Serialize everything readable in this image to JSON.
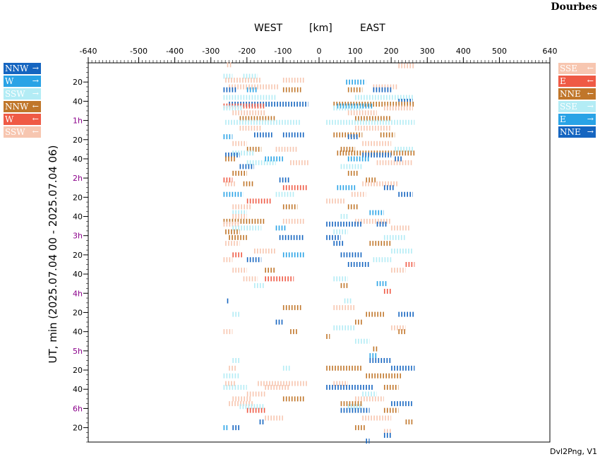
{
  "station": "Dourbes",
  "header": {
    "west": "WEST",
    "unit": "[km]",
    "east": "EAST"
  },
  "footer": "Dvl2Png, V1",
  "colors": {
    "NNW": "#1565c0",
    "W": "#29a3e6",
    "SSW": "#b3ecf5",
    "NNE": "#c0762a",
    "E": "#ef5a45",
    "SSE": "#f7c6b0"
  },
  "legend_left": [
    {
      "label": "NNW",
      "arrow": "→",
      "color": "#1565c0"
    },
    {
      "label": "W",
      "arrow": "→",
      "color": "#29a3e6"
    },
    {
      "label": "SSW",
      "arrow": "→",
      "color": "#b3ecf5"
    },
    {
      "label": "NNW",
      "arrow": "←",
      "color": "#c0762a"
    },
    {
      "label": "W",
      "arrow": "←",
      "color": "#ef5a45"
    },
    {
      "label": "SSW",
      "arrow": "←",
      "color": "#f7c6b0"
    }
  ],
  "legend_right": [
    {
      "label": "SSE",
      "arrow": "←",
      "color": "#f7c6b0"
    },
    {
      "label": "E",
      "arrow": "←",
      "color": "#ef5a45"
    },
    {
      "label": "NNE",
      "arrow": "←",
      "color": "#c0762a"
    },
    {
      "label": "SSE",
      "arrow": "→",
      "color": "#b3ecf5"
    },
    {
      "label": "E",
      "arrow": "→",
      "color": "#29a3e6"
    },
    {
      "label": "NNE",
      "arrow": "→",
      "color": "#1565c0"
    }
  ],
  "chart_data": {
    "type": "scatter",
    "title": "",
    "xlabel": "[km]",
    "ylabel": "UT, min (2025.07.04 00 - 2025.07.04 06)",
    "xlim": [
      -640,
      640
    ],
    "ylim_minutes": [
      0,
      395
    ],
    "x_ticks": [
      -640,
      -500,
      -400,
      -300,
      -200,
      -100,
      0,
      100,
      200,
      300,
      400,
      500,
      640
    ],
    "y_ticks": [
      {
        "min": 20,
        "label": "20",
        "hour": false
      },
      {
        "min": 40,
        "label": "40",
        "hour": false
      },
      {
        "min": 60,
        "label": "1h",
        "hour": true
      },
      {
        "min": 80,
        "label": "20",
        "hour": false
      },
      {
        "min": 100,
        "label": "40",
        "hour": false
      },
      {
        "min": 120,
        "label": "2h",
        "hour": true
      },
      {
        "min": 140,
        "label": "20",
        "hour": false
      },
      {
        "min": 160,
        "label": "40",
        "hour": false
      },
      {
        "min": 180,
        "label": "3h",
        "hour": true
      },
      {
        "min": 200,
        "label": "20",
        "hour": false
      },
      {
        "min": 220,
        "label": "40",
        "hour": false
      },
      {
        "min": 240,
        "label": "4h",
        "hour": true
      },
      {
        "min": 260,
        "label": "20",
        "hour": false
      },
      {
        "min": 280,
        "label": "40",
        "hour": false
      },
      {
        "min": 300,
        "label": "5h",
        "hour": true
      },
      {
        "min": 320,
        "label": "20",
        "hour": false
      },
      {
        "min": 340,
        "label": "40",
        "hour": false
      },
      {
        "min": 360,
        "label": "6h",
        "hour": true
      },
      {
        "min": 380,
        "label": "20",
        "hour": false
      }
    ],
    "segments": [
      {
        "t": 2,
        "x1": -255,
        "x2": -240,
        "c": "SSE"
      },
      {
        "t": 3,
        "x1": 220,
        "x2": 265,
        "c": "SSE"
      },
      {
        "t": 14,
        "x1": -265,
        "x2": -240,
        "c": "SSW"
      },
      {
        "t": 14,
        "x1": -210,
        "x2": -170,
        "c": "SSW"
      },
      {
        "t": 18,
        "x1": -260,
        "x2": -160,
        "c": "SSE"
      },
      {
        "t": 18,
        "x1": -100,
        "x2": -40,
        "c": "SSE"
      },
      {
        "t": 20,
        "x1": 75,
        "x2": 130,
        "c": "W"
      },
      {
        "t": 25,
        "x1": -250,
        "x2": -110,
        "c": "SSE"
      },
      {
        "t": 25,
        "x1": 150,
        "x2": 220,
        "c": "SSE"
      },
      {
        "t": 28,
        "x1": -265,
        "x2": -230,
        "c": "NNW"
      },
      {
        "t": 28,
        "x1": -200,
        "x2": -170,
        "c": "W"
      },
      {
        "t": 28,
        "x1": -100,
        "x2": -50,
        "c": "NNE"
      },
      {
        "t": 28,
        "x1": 80,
        "x2": 120,
        "c": "NNE"
      },
      {
        "t": 28,
        "x1": 150,
        "x2": 200,
        "c": "NNW"
      },
      {
        "t": 36,
        "x1": -265,
        "x2": -120,
        "c": "SSW"
      },
      {
        "t": 36,
        "x1": 100,
        "x2": 260,
        "c": "SSW"
      },
      {
        "t": 40,
        "x1": 220,
        "x2": 260,
        "c": "NNW"
      },
      {
        "t": 43,
        "x1": -250,
        "x2": -30,
        "c": "NNW"
      },
      {
        "t": 43,
        "x1": 40,
        "x2": 265,
        "c": "NNE"
      },
      {
        "t": 45,
        "x1": -265,
        "x2": -150,
        "c": "E"
      },
      {
        "t": 45,
        "x1": 50,
        "x2": 150,
        "c": "W"
      },
      {
        "t": 47,
        "x1": -265,
        "x2": -210,
        "c": "SSW"
      },
      {
        "t": 47,
        "x1": 40,
        "x2": 120,
        "c": "SSW"
      },
      {
        "t": 47,
        "x1": 180,
        "x2": 260,
        "c": "SSE"
      },
      {
        "t": 52,
        "x1": -240,
        "x2": -150,
        "c": "SSE"
      },
      {
        "t": 52,
        "x1": 80,
        "x2": 160,
        "c": "SSE"
      },
      {
        "t": 58,
        "x1": -220,
        "x2": -120,
        "c": "NNE"
      },
      {
        "t": 58,
        "x1": 100,
        "x2": 200,
        "c": "NNE"
      },
      {
        "t": 62,
        "x1": -260,
        "x2": -50,
        "c": "SSW"
      },
      {
        "t": 62,
        "x1": 20,
        "x2": 265,
        "c": "SSW"
      },
      {
        "t": 68,
        "x1": -220,
        "x2": -160,
        "c": "SSE"
      },
      {
        "t": 68,
        "x1": 100,
        "x2": 200,
        "c": "SSE"
      },
      {
        "t": 75,
        "x1": -180,
        "x2": -130,
        "c": "NNW"
      },
      {
        "t": 75,
        "x1": -100,
        "x2": -40,
        "c": "NNW"
      },
      {
        "t": 75,
        "x1": 40,
        "x2": 120,
        "c": "NNE"
      },
      {
        "t": 75,
        "x1": 170,
        "x2": 210,
        "c": "NNE"
      },
      {
        "t": 77,
        "x1": -265,
        "x2": -240,
        "c": "W"
      },
      {
        "t": 77,
        "x1": 80,
        "x2": 110,
        "c": "NNW"
      },
      {
        "t": 84,
        "x1": -240,
        "x2": -200,
        "c": "SSE"
      },
      {
        "t": 84,
        "x1": 120,
        "x2": 200,
        "c": "SSE"
      },
      {
        "t": 90,
        "x1": -200,
        "x2": -160,
        "c": "NNE"
      },
      {
        "t": 90,
        "x1": -120,
        "x2": -60,
        "c": "SSE"
      },
      {
        "t": 90,
        "x1": 60,
        "x2": 100,
        "c": "NNE"
      },
      {
        "t": 90,
        "x1": 210,
        "x2": 260,
        "c": "SSW"
      },
      {
        "t": 94,
        "x1": -240,
        "x2": -180,
        "c": "SSW"
      },
      {
        "t": 94,
        "x1": 50,
        "x2": 265,
        "c": "NNE"
      },
      {
        "t": 96,
        "x1": -260,
        "x2": -220,
        "c": "NNW"
      },
      {
        "t": 96,
        "x1": 120,
        "x2": 200,
        "c": "NNW"
      },
      {
        "t": 100,
        "x1": -260,
        "x2": -230,
        "c": "NNE"
      },
      {
        "t": 100,
        "x1": -150,
        "x2": -100,
        "c": "W"
      },
      {
        "t": 100,
        "x1": 80,
        "x2": 140,
        "c": "W"
      },
      {
        "t": 100,
        "x1": 210,
        "x2": 230,
        "c": "NNW"
      },
      {
        "t": 104,
        "x1": -200,
        "x2": -120,
        "c": "SSW"
      },
      {
        "t": 104,
        "x1": -80,
        "x2": -30,
        "c": "SSE"
      },
      {
        "t": 104,
        "x1": 160,
        "x2": 260,
        "c": "SSE"
      },
      {
        "t": 108,
        "x1": -220,
        "x2": -180,
        "c": "NNW"
      },
      {
        "t": 108,
        "x1": 60,
        "x2": 120,
        "c": "SSW"
      },
      {
        "t": 115,
        "x1": -240,
        "x2": -200,
        "c": "NNE"
      },
      {
        "t": 115,
        "x1": 80,
        "x2": 110,
        "c": "NNE"
      },
      {
        "t": 122,
        "x1": -265,
        "x2": -240,
        "c": "E"
      },
      {
        "t": 122,
        "x1": -110,
        "x2": -80,
        "c": "NNW"
      },
      {
        "t": 122,
        "x1": 130,
        "x2": 160,
        "c": "NNE"
      },
      {
        "t": 126,
        "x1": -260,
        "x2": -230,
        "c": "SSE"
      },
      {
        "t": 126,
        "x1": -210,
        "x2": -180,
        "c": "NNE"
      },
      {
        "t": 126,
        "x1": 120,
        "x2": 220,
        "c": "SSE"
      },
      {
        "t": 130,
        "x1": -100,
        "x2": -30,
        "c": "E"
      },
      {
        "t": 130,
        "x1": 50,
        "x2": 100,
        "c": "W"
      },
      {
        "t": 130,
        "x1": 180,
        "x2": 210,
        "c": "NNW"
      },
      {
        "t": 137,
        "x1": -265,
        "x2": -210,
        "c": "W"
      },
      {
        "t": 137,
        "x1": -120,
        "x2": -70,
        "c": "SSW"
      },
      {
        "t": 137,
        "x1": 90,
        "x2": 130,
        "c": "SSE"
      },
      {
        "t": 137,
        "x1": 220,
        "x2": 260,
        "c": "NNW"
      },
      {
        "t": 144,
        "x1": -200,
        "x2": -130,
        "c": "E"
      },
      {
        "t": 144,
        "x1": 20,
        "x2": 70,
        "c": "SSE"
      },
      {
        "t": 150,
        "x1": -240,
        "x2": -190,
        "c": "SSE"
      },
      {
        "t": 150,
        "x1": -100,
        "x2": -60,
        "c": "NNE"
      },
      {
        "t": 150,
        "x1": 80,
        "x2": 110,
        "c": "NNE"
      },
      {
        "t": 156,
        "x1": -240,
        "x2": -200,
        "c": "SSW"
      },
      {
        "t": 156,
        "x1": 140,
        "x2": 180,
        "c": "W"
      },
      {
        "t": 160,
        "x1": -240,
        "x2": -200,
        "c": "SSE"
      },
      {
        "t": 160,
        "x1": 60,
        "x2": 80,
        "c": "SSW"
      },
      {
        "t": 165,
        "x1": -265,
        "x2": -150,
        "c": "NNE"
      },
      {
        "t": 165,
        "x1": -100,
        "x2": -40,
        "c": "SSE"
      },
      {
        "t": 165,
        "x1": 100,
        "x2": 200,
        "c": "SSE"
      },
      {
        "t": 168,
        "x1": -265,
        "x2": -220,
        "c": "SSE"
      },
      {
        "t": 168,
        "x1": 20,
        "x2": 120,
        "c": "NNW"
      },
      {
        "t": 168,
        "x1": 160,
        "x2": 190,
        "c": "NNW"
      },
      {
        "t": 172,
        "x1": -240,
        "x2": -160,
        "c": "SSW"
      },
      {
        "t": 172,
        "x1": -120,
        "x2": -90,
        "c": "W"
      },
      {
        "t": 172,
        "x1": 200,
        "x2": 250,
        "c": "SSE"
      },
      {
        "t": 176,
        "x1": -260,
        "x2": -220,
        "c": "NNE"
      },
      {
        "t": 176,
        "x1": 40,
        "x2": 80,
        "c": "SSW"
      },
      {
        "t": 182,
        "x1": -250,
        "x2": -200,
        "c": "NNE"
      },
      {
        "t": 182,
        "x1": -110,
        "x2": -40,
        "c": "NNW"
      },
      {
        "t": 182,
        "x1": 20,
        "x2": 60,
        "c": "NNW"
      },
      {
        "t": 182,
        "x1": 180,
        "x2": 240,
        "c": "SSW"
      },
      {
        "t": 188,
        "x1": -260,
        "x2": -220,
        "c": "SSE"
      },
      {
        "t": 188,
        "x1": 40,
        "x2": 70,
        "c": "NNW"
      },
      {
        "t": 188,
        "x1": 140,
        "x2": 200,
        "c": "NNE"
      },
      {
        "t": 196,
        "x1": -180,
        "x2": -120,
        "c": "SSE"
      },
      {
        "t": 196,
        "x1": 200,
        "x2": 260,
        "c": "SSW"
      },
      {
        "t": 200,
        "x1": -240,
        "x2": -210,
        "c": "E"
      },
      {
        "t": 200,
        "x1": -100,
        "x2": -40,
        "c": "W"
      },
      {
        "t": 200,
        "x1": 60,
        "x2": 120,
        "c": "NNW"
      },
      {
        "t": 205,
        "x1": -265,
        "x2": -240,
        "c": "SSE"
      },
      {
        "t": 205,
        "x1": -200,
        "x2": -160,
        "c": "NNW"
      },
      {
        "t": 205,
        "x1": 150,
        "x2": 200,
        "c": "SSW"
      },
      {
        "t": 210,
        "x1": 80,
        "x2": 140,
        "c": "NNW"
      },
      {
        "t": 210,
        "x1": 240,
        "x2": 265,
        "c": "E"
      },
      {
        "t": 216,
        "x1": -240,
        "x2": -200,
        "c": "SSE"
      },
      {
        "t": 216,
        "x1": -150,
        "x2": -120,
        "c": "NNE"
      },
      {
        "t": 216,
        "x1": 200,
        "x2": 240,
        "c": "SSE"
      },
      {
        "t": 225,
        "x1": -210,
        "x2": -170,
        "c": "SSE"
      },
      {
        "t": 225,
        "x1": -150,
        "x2": -70,
        "c": "E"
      },
      {
        "t": 225,
        "x1": 40,
        "x2": 80,
        "c": "SSW"
      },
      {
        "t": 230,
        "x1": 160,
        "x2": 190,
        "c": "W"
      },
      {
        "t": 232,
        "x1": -180,
        "x2": -150,
        "c": "SSW"
      },
      {
        "t": 232,
        "x1": 60,
        "x2": 80,
        "c": "NNE"
      },
      {
        "t": 238,
        "x1": 180,
        "x2": 200,
        "c": "E"
      },
      {
        "t": 248,
        "x1": -255,
        "x2": -250,
        "c": "NNW"
      },
      {
        "t": 248,
        "x1": 70,
        "x2": 90,
        "c": "SSW"
      },
      {
        "t": 255,
        "x1": -100,
        "x2": -50,
        "c": "NNE"
      },
      {
        "t": 255,
        "x1": 40,
        "x2": 100,
        "c": "SSE"
      },
      {
        "t": 262,
        "x1": -240,
        "x2": -220,
        "c": "SSW"
      },
      {
        "t": 262,
        "x1": 130,
        "x2": 180,
        "c": "NNE"
      },
      {
        "t": 262,
        "x1": 220,
        "x2": 265,
        "c": "NNW"
      },
      {
        "t": 270,
        "x1": -120,
        "x2": -100,
        "c": "NNW"
      },
      {
        "t": 270,
        "x1": 100,
        "x2": 120,
        "c": "NNE"
      },
      {
        "t": 276,
        "x1": 40,
        "x2": 100,
        "c": "SSW"
      },
      {
        "t": 276,
        "x1": 200,
        "x2": 240,
        "c": "SSE"
      },
      {
        "t": 280,
        "x1": -265,
        "x2": -240,
        "c": "SSE"
      },
      {
        "t": 280,
        "x1": -80,
        "x2": -60,
        "c": "NNE"
      },
      {
        "t": 280,
        "x1": 220,
        "x2": 240,
        "c": "NNE"
      },
      {
        "t": 285,
        "x1": 20,
        "x2": 30,
        "c": "NNE"
      },
      {
        "t": 290,
        "x1": 100,
        "x2": 140,
        "c": "SSW"
      },
      {
        "t": 298,
        "x1": 150,
        "x2": 165,
        "c": "NNE"
      },
      {
        "t": 305,
        "x1": 140,
        "x2": 160,
        "c": "W"
      },
      {
        "t": 310,
        "x1": -240,
        "x2": -220,
        "c": "SSW"
      },
      {
        "t": 310,
        "x1": 140,
        "x2": 200,
        "c": "NNW"
      },
      {
        "t": 318,
        "x1": -250,
        "x2": -230,
        "c": "SSE"
      },
      {
        "t": 318,
        "x1": -100,
        "x2": -80,
        "c": "SSW"
      },
      {
        "t": 318,
        "x1": 20,
        "x2": 120,
        "c": "NNE"
      },
      {
        "t": 318,
        "x1": 200,
        "x2": 265,
        "c": "NNW"
      },
      {
        "t": 326,
        "x1": -265,
        "x2": -220,
        "c": "SSW"
      },
      {
        "t": 326,
        "x1": 130,
        "x2": 230,
        "c": "NNE"
      },
      {
        "t": 334,
        "x1": -260,
        "x2": -230,
        "c": "SSE"
      },
      {
        "t": 334,
        "x1": -170,
        "x2": -30,
        "c": "SSE"
      },
      {
        "t": 334,
        "x1": 40,
        "x2": 80,
        "c": "SSE"
      },
      {
        "t": 338,
        "x1": -265,
        "x2": -200,
        "c": "SSW"
      },
      {
        "t": 338,
        "x1": -150,
        "x2": -80,
        "c": "SSE"
      },
      {
        "t": 338,
        "x1": 20,
        "x2": 150,
        "c": "NNW"
      },
      {
        "t": 338,
        "x1": 180,
        "x2": 220,
        "c": "NNE"
      },
      {
        "t": 345,
        "x1": -200,
        "x2": -150,
        "c": "SSE"
      },
      {
        "t": 345,
        "x1": 120,
        "x2": 160,
        "c": "SSW"
      },
      {
        "t": 350,
        "x1": -240,
        "x2": -190,
        "c": "SSE"
      },
      {
        "t": 350,
        "x1": -100,
        "x2": -40,
        "c": "NNE"
      },
      {
        "t": 350,
        "x1": 100,
        "x2": 180,
        "c": "SSE"
      },
      {
        "t": 355,
        "x1": -250,
        "x2": -180,
        "c": "SSE"
      },
      {
        "t": 355,
        "x1": 60,
        "x2": 120,
        "c": "NNE"
      },
      {
        "t": 355,
        "x1": 200,
        "x2": 260,
        "c": "NNW"
      },
      {
        "t": 358,
        "x1": -220,
        "x2": -150,
        "c": "SSW"
      },
      {
        "t": 358,
        "x1": 80,
        "x2": 120,
        "c": "SSW"
      },
      {
        "t": 362,
        "x1": -200,
        "x2": -150,
        "c": "E"
      },
      {
        "t": 362,
        "x1": 60,
        "x2": 140,
        "c": "NNW"
      },
      {
        "t": 362,
        "x1": 180,
        "x2": 220,
        "c": "NNE"
      },
      {
        "t": 370,
        "x1": -150,
        "x2": -100,
        "c": "SSE"
      },
      {
        "t": 370,
        "x1": 120,
        "x2": 200,
        "c": "SSE"
      },
      {
        "t": 374,
        "x1": -165,
        "x2": -150,
        "c": "NNW"
      },
      {
        "t": 374,
        "x1": 240,
        "x2": 260,
        "c": "NNE"
      },
      {
        "t": 380,
        "x1": -265,
        "x2": -250,
        "c": "W"
      },
      {
        "t": 380,
        "x1": -240,
        "x2": -220,
        "c": "NNW"
      },
      {
        "t": 380,
        "x1": 100,
        "x2": 130,
        "c": "NNE"
      },
      {
        "t": 384,
        "x1": 180,
        "x2": 200,
        "c": "SSE"
      },
      {
        "t": 388,
        "x1": 180,
        "x2": 200,
        "c": "NNW"
      },
      {
        "t": 394,
        "x1": 130,
        "x2": 140,
        "c": "NNW"
      }
    ]
  }
}
